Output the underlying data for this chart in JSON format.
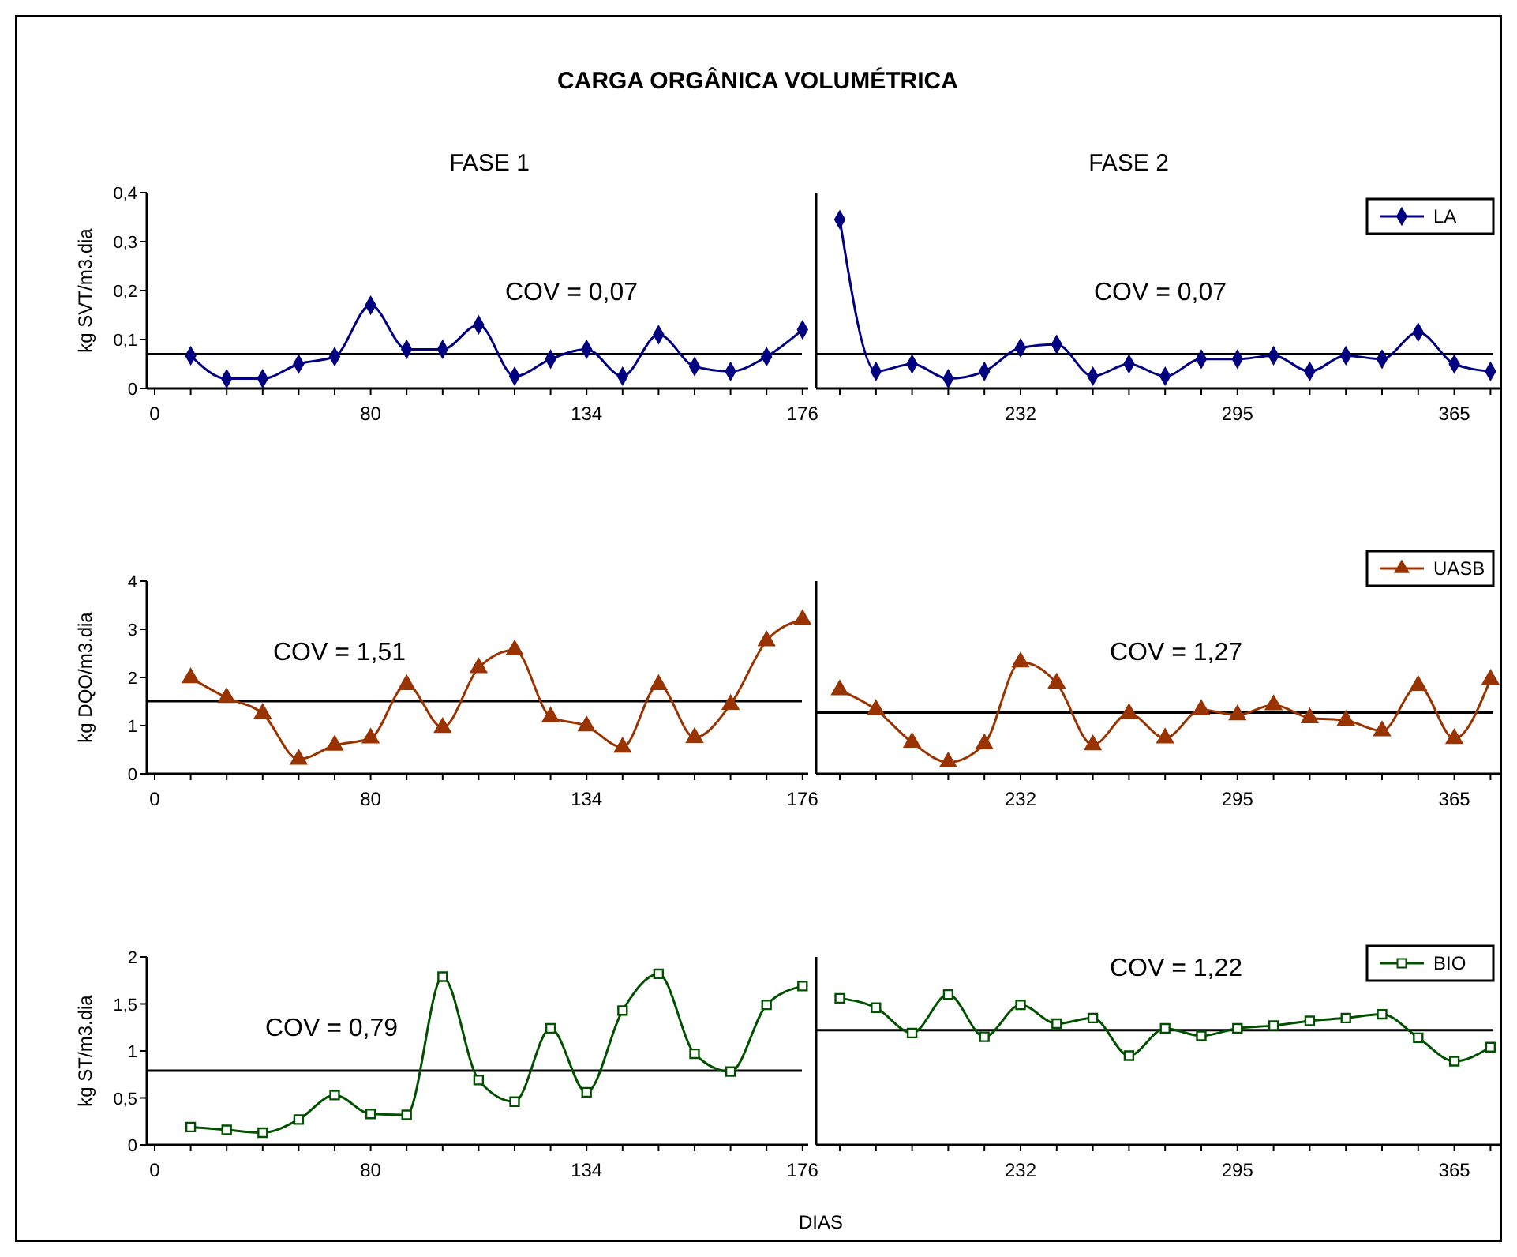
{
  "chart_data": [
    {
      "type": "line",
      "title": "CARGA ORGÂNICA VOLUMÉTRICA",
      "subtitle": "FASE 1",
      "ylabel": "kg SVT/m3.dia",
      "categories": [
        "0",
        null,
        null,
        null,
        null,
        null,
        "80",
        null,
        null,
        null,
        null,
        null,
        "134",
        null,
        null,
        null,
        null,
        null,
        "176"
      ],
      "series": [
        {
          "color": "#000080",
          "values": [
            null,
            0.067,
            0.02,
            0.02,
            0.05,
            0.065,
            0.17,
            0.08,
            0.08,
            0.13,
            0.025,
            0.06,
            0.08,
            0.025,
            0.11,
            0.045,
            0.035,
            0.065,
            0.12
          ]
        }
      ],
      "ylim": [
        0,
        0.4
      ],
      "yticks": [
        0,
        {
          "value": 0.1,
          "label": "0,1"
        },
        {
          "value": 0.2,
          "label": "0,2"
        },
        {
          "value": 0.3,
          "label": "0,3"
        },
        {
          "value": 0.4,
          "label": "0,4"
        }
      ],
      "ref_lines": [
        {
          "axis": "y",
          "value": 0.07,
          "label": "COV = 0,07"
        }
      ],
      "marker": "diamond",
      "grid": false,
      "legend": false
    },
    {
      "type": "line",
      "subtitle": "FASE 2",
      "categories": [
        null,
        null,
        null,
        null,
        null,
        "232",
        null,
        null,
        null,
        null,
        null,
        "295",
        null,
        null,
        null,
        null,
        null,
        "365",
        null
      ],
      "series": [
        {
          "name": "LA",
          "color": "#000080",
          "values": [
            0.345,
            0.035,
            0.05,
            0.02,
            0.035,
            0.083,
            0.09,
            0.025,
            0.05,
            0.025,
            0.06,
            0.06,
            0.067,
            0.035,
            0.067,
            0.06,
            0.115,
            0.05,
            0.035
          ]
        }
      ],
      "ylim": [
        0,
        0.4
      ],
      "tick_labels": "x",
      "ref_lines": [
        {
          "axis": "y",
          "value": 0.07,
          "label": "COV = 0,07"
        }
      ],
      "marker": "diamond",
      "grid": false,
      "legend": "top right"
    },
    {
      "type": "line",
      "ylabel": "kg DQO/m3.dia",
      "categories": [
        "0",
        null,
        null,
        null,
        null,
        null,
        "80",
        null,
        null,
        null,
        null,
        null,
        "134",
        null,
        null,
        null,
        null,
        null,
        "176"
      ],
      "series": [
        {
          "color": "#993300",
          "values": [
            null,
            1.99,
            1.58,
            1.25,
            0.3,
            0.59,
            0.74,
            1.85,
            0.96,
            2.2,
            2.57,
            1.18,
            0.99,
            0.55,
            1.85,
            0.75,
            1.44,
            2.76,
            3.2
          ]
        }
      ],
      "ylim": [
        0,
        4
      ],
      "yticks": [
        0,
        1,
        2,
        3,
        4
      ],
      "ref_lines": [
        {
          "axis": "y",
          "value": 1.51,
          "label": "COV = 1,51"
        }
      ],
      "marker": "triangle",
      "grid": false,
      "legend": false
    },
    {
      "type": "line",
      "categories": [
        null,
        null,
        null,
        null,
        null,
        "232",
        null,
        null,
        null,
        null,
        null,
        "295",
        null,
        null,
        null,
        null,
        null,
        "365",
        null
      ],
      "series": [
        {
          "name": "UASB",
          "color": "#993300",
          "values": [
            1.74,
            1.33,
            0.65,
            0.24,
            0.62,
            2.32,
            1.88,
            0.6,
            1.25,
            0.74,
            1.33,
            1.22,
            1.43,
            1.16,
            1.11,
            0.89,
            1.83,
            0.73,
            1.96
          ]
        }
      ],
      "ylim": [
        0,
        4
      ],
      "tick_labels": "x",
      "ref_lines": [
        {
          "axis": "y",
          "value": 1.27,
          "label": "COV = 1,27"
        }
      ],
      "marker": "triangle",
      "grid": false,
      "legend": "top right"
    },
    {
      "type": "line",
      "ylabel": "kg ST/m3.dia",
      "xlabel": "DIAS",
      "categories": [
        "0",
        null,
        null,
        null,
        null,
        null,
        "80",
        null,
        null,
        null,
        null,
        null,
        "134",
        null,
        null,
        null,
        null,
        null,
        "176"
      ],
      "series": [
        {
          "color": "#005000",
          "values": [
            null,
            0.19,
            0.16,
            0.13,
            0.27,
            0.53,
            0.33,
            0.32,
            1.79,
            0.69,
            0.46,
            1.24,
            0.56,
            1.43,
            1.82,
            0.97,
            0.78,
            1.49,
            1.69
          ]
        }
      ],
      "ylim": [
        0,
        2
      ],
      "yticks": [
        0,
        {
          "value": 0.5,
          "label": "0,5"
        },
        1,
        {
          "value": 1.5,
          "label": "1,5"
        },
        2
      ],
      "ref_lines": [
        {
          "axis": "y",
          "value": 0.79,
          "label": "COV = 0,79"
        }
      ],
      "marker": "square",
      "grid": false,
      "legend": false
    },
    {
      "type": "line",
      "categories": [
        null,
        null,
        null,
        null,
        null,
        "232",
        null,
        null,
        null,
        null,
        null,
        "295",
        null,
        null,
        null,
        null,
        null,
        "365",
        null
      ],
      "series": [
        {
          "name": "BIO",
          "color": "#005000",
          "values": [
            1.56,
            1.46,
            1.19,
            1.6,
            1.15,
            1.49,
            1.29,
            1.35,
            0.95,
            1.24,
            1.16,
            1.24,
            1.27,
            1.32,
            1.35,
            1.39,
            1.14,
            0.89,
            1.04
          ]
        }
      ],
      "ylim": [
        0,
        2
      ],
      "tick_labels": "x",
      "ref_lines": [
        {
          "axis": "y",
          "value": 1.22,
          "label": "COV = 1,22"
        }
      ],
      "marker": "square",
      "grid": false,
      "legend": "top right"
    }
  ]
}
